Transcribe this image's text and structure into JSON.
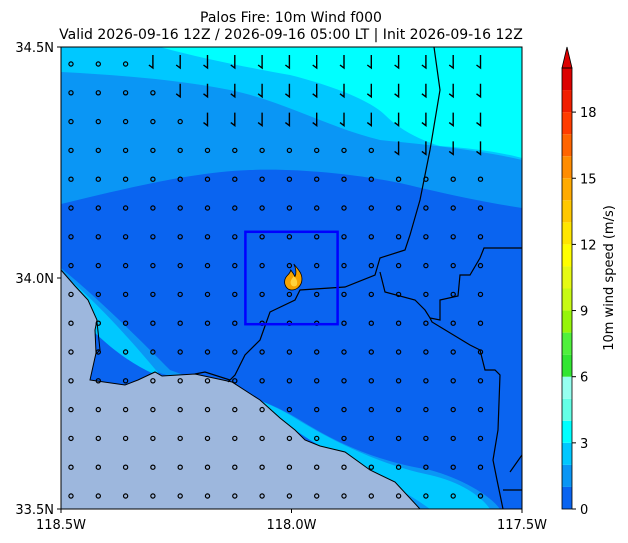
{
  "chart_data": {
    "type": "heatmap",
    "title_line1": "Palos Fire: 10m Wind f000",
    "title_line2": "Valid 2026-09-16 12Z / 2026-09-16 05:00 LT | Init 2026-09-16 12Z",
    "xlim": [
      -118.5,
      -117.5
    ],
    "ylim": [
      33.5,
      34.5
    ],
    "x_ticks": [
      -118.5,
      -118.0,
      -117.5
    ],
    "x_tick_labels": [
      "118.5W",
      "118.0W",
      "117.5W"
    ],
    "y_ticks": [
      33.5,
      34.0,
      34.5
    ],
    "y_tick_labels": [
      "33.5N",
      "34.0N",
      "34.5N"
    ],
    "colorbar": {
      "label": "10m wind speed (m/s)",
      "range": [
        0,
        20
      ],
      "step": 1,
      "ticks": [
        0,
        3,
        6,
        9,
        12,
        15,
        18
      ],
      "tick_labels": [
        "0",
        "3",
        "6",
        "9",
        "12",
        "15",
        "18"
      ],
      "colors": [
        "#0a64f0",
        "#0a96f5",
        "#00c8ff",
        "#00ffff",
        "#64ffe6",
        "#96fff0",
        "#32e632",
        "#50f03c",
        "#96f50a",
        "#c8fa14",
        "#e6fa14",
        "#ffff00",
        "#ffe600",
        "#ffc800",
        "#ffaa00",
        "#ff8c00",
        "#ff6400",
        "#ff3c00",
        "#f01e00",
        "#dc0000"
      ],
      "extend": "max"
    },
    "speed_bands": [
      {
        "range": [
          0,
          1
        ],
        "color": "#0a64f0"
      },
      {
        "range": [
          1,
          2
        ],
        "color": "#0a96f5"
      },
      {
        "range": [
          2,
          3
        ],
        "color": "#00c8ff"
      },
      {
        "range": [
          3,
          4
        ],
        "color": "#00ffff"
      }
    ],
    "ocean_color": "#9db7dd",
    "fire_location": [
      -117.995,
      34.0
    ],
    "fire_box": {
      "lon": [
        -118.1,
        -117.9
      ],
      "lat": [
        33.9,
        34.1
      ],
      "color": "#0000ff"
    },
    "grid": false
  }
}
